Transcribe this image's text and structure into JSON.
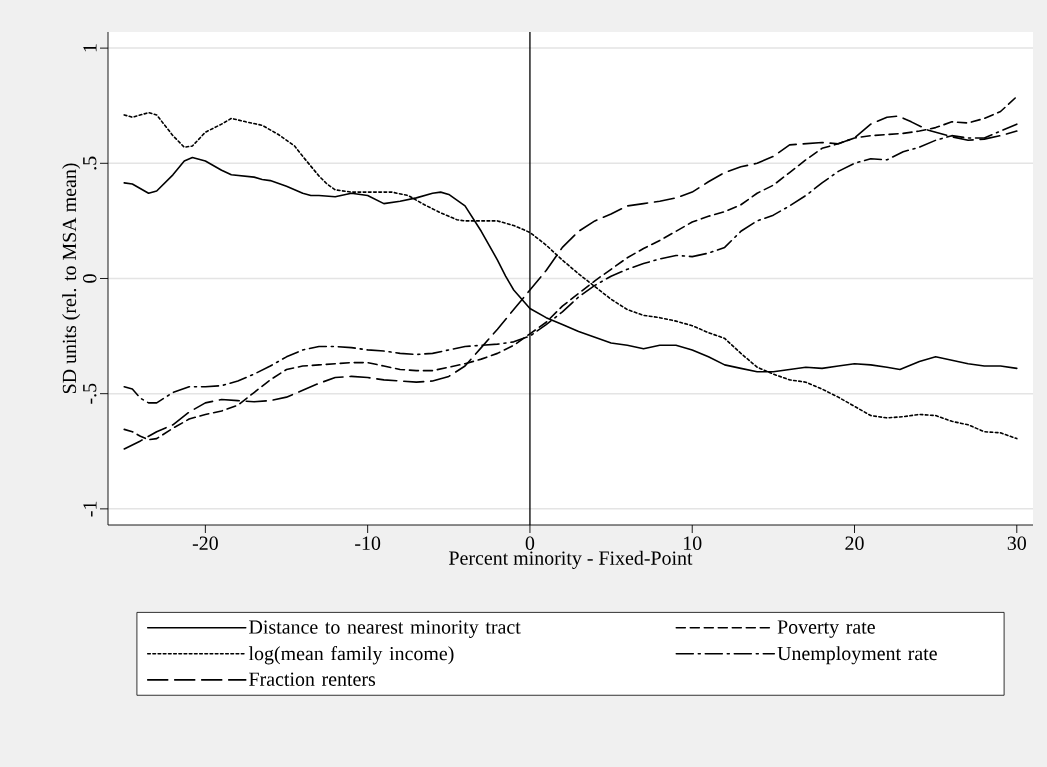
{
  "chart_data": {
    "type": "line",
    "xlabel": "Percent minority - Fixed-Point",
    "ylabel": "SD units (rel. to MSA mean)",
    "xlim": [
      -26,
      31
    ],
    "ylim": [
      -1.07,
      1.07
    ],
    "xticks": [
      -20,
      -10,
      0,
      10,
      20,
      30
    ],
    "yticks": [
      {
        "value": -1,
        "label": "-1"
      },
      {
        "value": -0.5,
        "label": "-.5"
      },
      {
        "value": 0,
        "label": "0"
      },
      {
        "value": 0.5,
        "label": ".5"
      },
      {
        "value": 1,
        "label": "1"
      }
    ],
    "grid": "y",
    "legend": "bottom",
    "ref_lines": [
      {
        "axis": "x",
        "value": 0,
        "color": "#000000"
      }
    ],
    "series": [
      {
        "name": "Distance to nearest minority tract",
        "color": "#000000",
        "line_style": "solid",
        "x": [
          -25,
          -24.5,
          -23.5,
          -23,
          -22,
          -21.3,
          -20.8,
          -20,
          -19,
          -18.4,
          -17,
          -16.5,
          -16,
          -15,
          -14,
          -13.5,
          -13,
          -12,
          -11,
          -10,
          -9,
          -8,
          -7,
          -6,
          -5.5,
          -5,
          -4,
          -3,
          -2,
          -1.5,
          -1,
          0,
          1,
          2,
          3,
          4,
          5,
          6,
          7,
          8,
          9,
          10,
          11,
          12,
          13,
          14,
          15,
          16,
          17,
          18,
          19,
          20,
          21,
          22,
          22.8,
          24,
          25,
          26,
          27,
          28,
          29,
          30
        ],
        "values": [
          0.415,
          0.41,
          0.37,
          0.38,
          0.45,
          0.51,
          0.525,
          0.51,
          0.47,
          0.45,
          0.44,
          0.43,
          0.425,
          0.4,
          0.37,
          0.36,
          0.36,
          0.355,
          0.37,
          0.36,
          0.325,
          0.335,
          0.35,
          0.37,
          0.375,
          0.365,
          0.315,
          0.205,
          0.08,
          0.01,
          -0.05,
          -0.13,
          -0.17,
          -0.2,
          -0.23,
          -0.255,
          -0.28,
          -0.29,
          -0.305,
          -0.29,
          -0.29,
          -0.31,
          -0.34,
          -0.375,
          -0.39,
          -0.405,
          -0.405,
          -0.395,
          -0.385,
          -0.39,
          -0.38,
          -0.37,
          -0.375,
          -0.385,
          -0.395,
          -0.36,
          -0.34,
          -0.355,
          -0.37,
          -0.38,
          -0.38,
          -0.39
        ]
      },
      {
        "name": "log(mean family income)",
        "color": "#000000",
        "line_style": "dotted",
        "x": [
          -25,
          -24.5,
          -23.5,
          -23,
          -22,
          -21.3,
          -20.8,
          -20,
          -19,
          -18.4,
          -17.5,
          -16.5,
          -15.5,
          -14.5,
          -14,
          -13,
          -12.5,
          -12,
          -11,
          -10,
          -8.5,
          -7.5,
          -6.5,
          -5.5,
          -4.5,
          -4,
          -3,
          -2,
          -1,
          0,
          1,
          2,
          3,
          4,
          5,
          6,
          7,
          8,
          9,
          10,
          11,
          12,
          13,
          14,
          15,
          16,
          17,
          18,
          19,
          20,
          21,
          22,
          23,
          24,
          25,
          26,
          27,
          28,
          29,
          30
        ],
        "values": [
          0.71,
          0.7,
          0.72,
          0.71,
          0.62,
          0.57,
          0.575,
          0.635,
          0.67,
          0.695,
          0.68,
          0.665,
          0.625,
          0.575,
          0.53,
          0.445,
          0.41,
          0.385,
          0.375,
          0.375,
          0.375,
          0.36,
          0.32,
          0.285,
          0.255,
          0.25,
          0.25,
          0.25,
          0.23,
          0.2,
          0.145,
          0.08,
          0.02,
          -0.035,
          -0.09,
          -0.135,
          -0.16,
          -0.17,
          -0.185,
          -0.205,
          -0.235,
          -0.26,
          -0.325,
          -0.385,
          -0.415,
          -0.44,
          -0.45,
          -0.48,
          -0.515,
          -0.555,
          -0.595,
          -0.605,
          -0.6,
          -0.59,
          -0.595,
          -0.62,
          -0.635,
          -0.665,
          -0.67,
          -0.695
        ]
      },
      {
        "name": "Fraction renters",
        "color": "#000000",
        "line_style": "long dashed",
        "x": [
          -25,
          -24,
          -23,
          -22,
          -21,
          -20,
          -19,
          -18,
          -17,
          -16,
          -15,
          -14,
          -13,
          -12,
          -11,
          -10,
          -9,
          -8,
          -7,
          -6,
          -5,
          -4,
          -3,
          -2,
          -1,
          0,
          1,
          2,
          3,
          4,
          5,
          6,
          7,
          8,
          9,
          10,
          11,
          12,
          13,
          14,
          15,
          16,
          17,
          18,
          19,
          20,
          21,
          22,
          22.7,
          23.5,
          24.5,
          26,
          27,
          28,
          29,
          30
        ],
        "values": [
          -0.74,
          -0.705,
          -0.665,
          -0.635,
          -0.58,
          -0.54,
          -0.525,
          -0.53,
          -0.535,
          -0.53,
          -0.515,
          -0.485,
          -0.455,
          -0.43,
          -0.425,
          -0.43,
          -0.44,
          -0.445,
          -0.45,
          -0.445,
          -0.425,
          -0.38,
          -0.3,
          -0.22,
          -0.135,
          -0.05,
          0.035,
          0.135,
          0.205,
          0.25,
          0.28,
          0.315,
          0.325,
          0.335,
          0.35,
          0.375,
          0.42,
          0.46,
          0.485,
          0.5,
          0.53,
          0.58,
          0.585,
          0.59,
          0.585,
          0.61,
          0.67,
          0.7,
          0.705,
          0.68,
          0.645,
          0.615,
          0.6,
          0.605,
          0.62,
          0.64
        ]
      },
      {
        "name": "Poverty rate",
        "color": "#000000",
        "line_style": "dashed",
        "x": [
          -25,
          -24.5,
          -24,
          -23.5,
          -23,
          -22,
          -21,
          -20,
          -19,
          -18,
          -17,
          -16,
          -15,
          -14,
          -13,
          -12,
          -11,
          -10,
          -9,
          -8,
          -7,
          -6,
          -5,
          -4,
          -3,
          -2,
          -1,
          0,
          1,
          2,
          3,
          4,
          5,
          6,
          7,
          8,
          9,
          10,
          11,
          12,
          13,
          14,
          15,
          16,
          17,
          18,
          19,
          20,
          21,
          22,
          23,
          24,
          25,
          26,
          27,
          28,
          29,
          30
        ],
        "values": [
          -0.655,
          -0.665,
          -0.685,
          -0.7,
          -0.695,
          -0.65,
          -0.61,
          -0.59,
          -0.575,
          -0.55,
          -0.495,
          -0.44,
          -0.395,
          -0.38,
          -0.375,
          -0.37,
          -0.365,
          -0.365,
          -0.38,
          -0.395,
          -0.4,
          -0.4,
          -0.385,
          -0.37,
          -0.35,
          -0.325,
          -0.29,
          -0.24,
          -0.19,
          -0.12,
          -0.065,
          -0.01,
          0.04,
          0.09,
          0.13,
          0.165,
          0.205,
          0.245,
          0.27,
          0.29,
          0.32,
          0.37,
          0.405,
          0.46,
          0.515,
          0.565,
          0.585,
          0.61,
          0.62,
          0.625,
          0.63,
          0.64,
          0.655,
          0.68,
          0.675,
          0.695,
          0.725,
          0.79
        ]
      },
      {
        "name": "Unemployment rate",
        "color": "#000000",
        "line_style": "dashdotted",
        "x": [
          -25,
          -24.5,
          -24,
          -23.5,
          -23,
          -22,
          -21,
          -20,
          -19,
          -18,
          -17,
          -16,
          -15,
          -14,
          -13,
          -12,
          -11,
          -10,
          -9,
          -8,
          -7,
          -6,
          -5,
          -4,
          -3,
          -2,
          -1,
          0,
          1,
          2,
          3,
          4,
          5,
          6,
          7,
          8,
          9,
          10,
          11,
          12,
          13,
          14,
          15,
          16,
          17,
          18,
          19,
          20,
          21,
          22,
          23,
          24,
          25,
          26,
          27,
          28,
          29,
          30
        ],
        "values": [
          -0.47,
          -0.48,
          -0.52,
          -0.54,
          -0.54,
          -0.495,
          -0.47,
          -0.47,
          -0.465,
          -0.445,
          -0.415,
          -0.38,
          -0.34,
          -0.31,
          -0.295,
          -0.295,
          -0.3,
          -0.31,
          -0.315,
          -0.325,
          -0.33,
          -0.325,
          -0.31,
          -0.295,
          -0.29,
          -0.285,
          -0.275,
          -0.25,
          -0.2,
          -0.145,
          -0.08,
          -0.03,
          0.01,
          0.04,
          0.065,
          0.085,
          0.1,
          0.095,
          0.11,
          0.135,
          0.205,
          0.25,
          0.275,
          0.315,
          0.36,
          0.415,
          0.465,
          0.5,
          0.52,
          0.515,
          0.55,
          0.57,
          0.6,
          0.62,
          0.61,
          0.61,
          0.64,
          0.67
        ]
      }
    ]
  }
}
